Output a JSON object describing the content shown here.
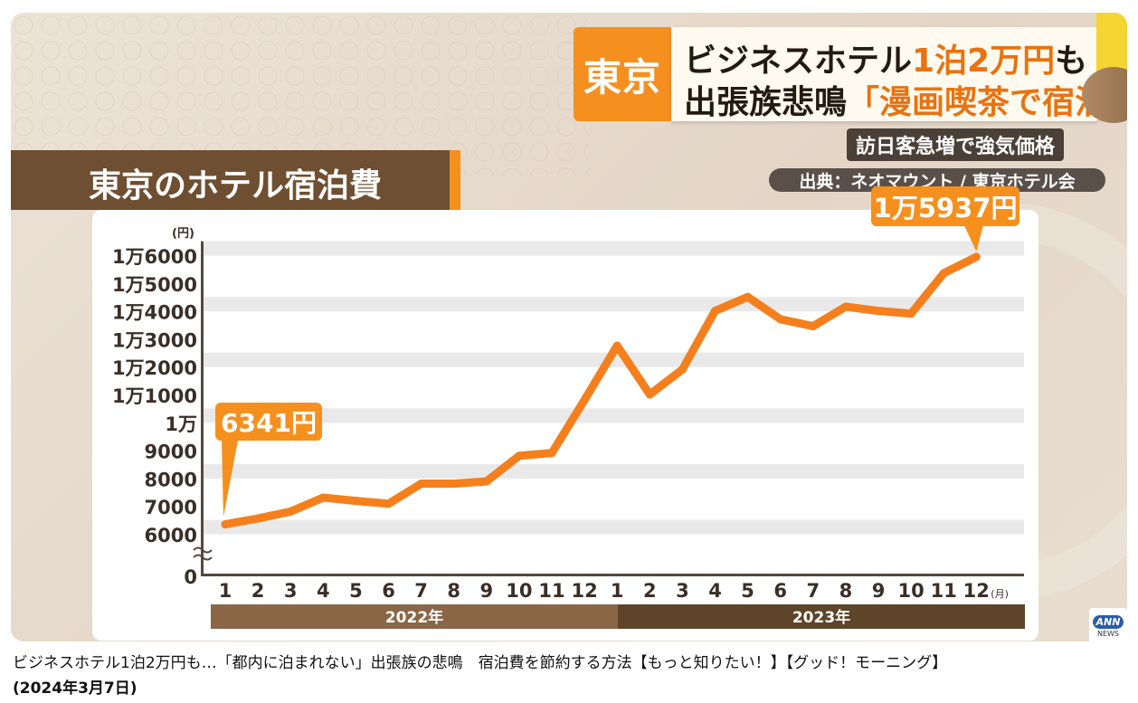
{
  "header": {
    "region": "東京",
    "line1_prefix": "ビジネスホテル",
    "line1_highlight": "1泊2万円",
    "line1_suffix": "も",
    "line2_prefix": "出張族悲鳴",
    "line2_highlight": "「漫画喫茶で宿泊」",
    "subtitle": "訪日客急増で強気価格",
    "source": "出典：ネオマウント / 東京ホテル会"
  },
  "chart_title": "東京のホテル宿泊費",
  "callouts": {
    "start": "6341円",
    "end": "1万5937円"
  },
  "chart_data": {
    "type": "line",
    "title": "東京のホテル宿泊費",
    "y_unit_label": "(円)",
    "x_unit_label": "(月)",
    "x": [
      "1",
      "2",
      "3",
      "4",
      "5",
      "6",
      "7",
      "8",
      "9",
      "10",
      "11",
      "12",
      "1",
      "2",
      "3",
      "4",
      "5",
      "6",
      "7",
      "8",
      "9",
      "10",
      "11",
      "12"
    ],
    "year_groups": [
      {
        "label": "2022年",
        "count": 12
      },
      {
        "label": "2023年",
        "count": 12
      }
    ],
    "series": [
      {
        "values": [
          6341,
          6550,
          6800,
          7300,
          7180,
          7080,
          7800,
          7800,
          7880,
          8800,
          8900,
          10800,
          12750,
          11000,
          11900,
          14000,
          14500,
          13700,
          13450,
          14150,
          14000,
          13900,
          15350,
          15937
        ]
      }
    ],
    "yticks": [
      0,
      6000,
      7000,
      8000,
      9000,
      10000,
      11000,
      12000,
      13000,
      14000,
      15000,
      16000
    ],
    "ytick_labels": [
      "0",
      "6000",
      "7000",
      "8000",
      "9000",
      "1万",
      "1万1000",
      "1万2000",
      "1万3000",
      "1万4000",
      "1万5000",
      "1万6000"
    ],
    "ylim": [
      5500,
      16500
    ],
    "axis_break": true,
    "line_color": "#f47f1c"
  },
  "footer": {
    "caption": "ビジネスホテル1泊2万円も…「都内に泊まれない」出張族の悲鳴　宿泊費を節約する方法【もっと知りたい！】【グッド！モーニング】",
    "date": "(2024年3月7日)",
    "logo_text": "ANN",
    "logo_sub": "NEWS"
  }
}
